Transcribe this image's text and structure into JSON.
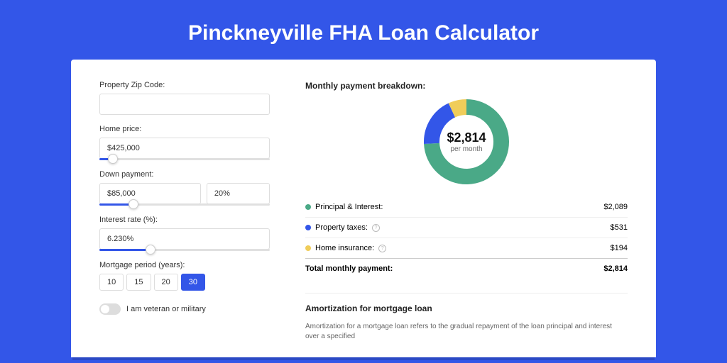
{
  "page_title": "Pinckneyville FHA Loan Calculator",
  "form": {
    "zip": {
      "label": "Property Zip Code:",
      "value": ""
    },
    "home_price": {
      "label": "Home price:",
      "value": "$425,000",
      "slider_percent": 8
    },
    "down_payment": {
      "label": "Down payment:",
      "amount": "$85,000",
      "percent": "20%",
      "slider_percent": 20
    },
    "interest_rate": {
      "label": "Interest rate (%):",
      "value": "6.230%",
      "slider_percent": 30
    },
    "period": {
      "label": "Mortgage period (years):",
      "options": [
        "10",
        "15",
        "20",
        "30"
      ],
      "active_index": 3
    },
    "veteran": {
      "label": "I am veteran or military",
      "on": false
    }
  },
  "breakdown": {
    "title": "Monthly payment breakdown:",
    "center_amount": "$2,814",
    "center_sub": "per month",
    "donut": {
      "size": 120,
      "stroke": 22,
      "segments": [
        {
          "label": "Principal & Interest:",
          "value": "$2,089",
          "pct": 74.2,
          "color": "#4aa987"
        },
        {
          "label": "Property taxes:",
          "value": "$531",
          "pct": 18.9,
          "color": "#3356e8",
          "info": true
        },
        {
          "label": "Home insurance:",
          "value": "$194",
          "pct": 6.9,
          "color": "#f0cd5a",
          "info": true
        }
      ]
    },
    "total": {
      "label": "Total monthly payment:",
      "value": "$2,814"
    }
  },
  "amort": {
    "title": "Amortization for mortgage loan",
    "text": "Amortization for a mortgage loan refers to the gradual repayment of the loan principal and interest over a specified"
  },
  "colors": {
    "background": "#3356e8"
  }
}
